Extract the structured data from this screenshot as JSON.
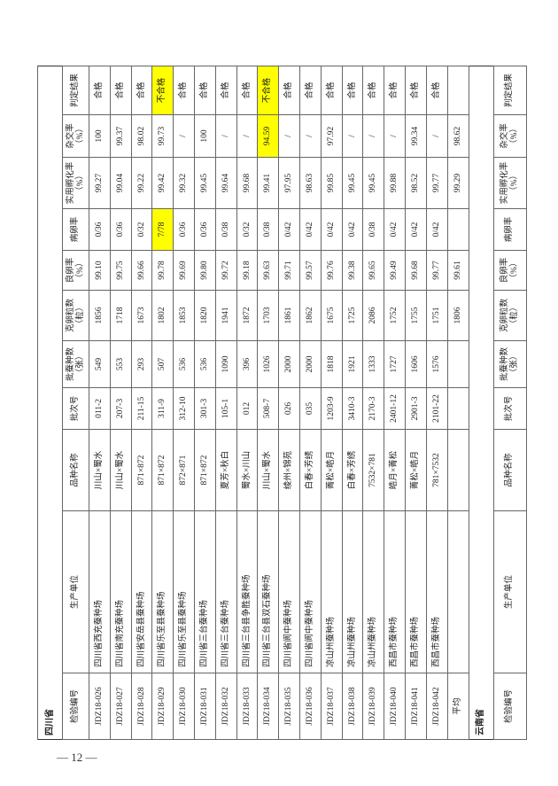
{
  "province1": "四川省",
  "province2": "云南省",
  "headers": [
    "检验编号",
    "生产单位",
    "品种名称",
    "批次号",
    "批蚕种数\n（张）",
    "克卵粒数\n（粒）",
    "良卵率\n（%）",
    "病卵率",
    "实用孵化率\n（%）",
    "杂交率\n（%）",
    "判定结果"
  ],
  "rows": [
    [
      "JDZ18-026",
      "四川省西充蚕种场",
      "川山×蜀水",
      "011-2",
      "549",
      "1856",
      "99.10",
      "0/36",
      "99.27",
      "100",
      "合格"
    ],
    [
      "JDZ18-027",
      "四川省南充蚕种场",
      "川山×蜀水",
      "207-3",
      "553",
      "1718",
      "99.75",
      "0/36",
      "99.04",
      "99.37",
      "合格"
    ],
    [
      "JDZ18-028",
      "四川省安岳县蚕种场",
      "871×872",
      "211-15",
      "293",
      "1673",
      "99.66",
      "0/32",
      "99.22",
      "98.02",
      "合格"
    ],
    [
      "JDZ18-029",
      "四川省乐至县蚕种场",
      "871×872",
      "311-9",
      "507",
      "1802",
      "99.78",
      "7/78",
      "99.42",
      "99.73",
      "不合格"
    ],
    [
      "JDZ18-030",
      "四川省乐至县蚕种场",
      "872×871",
      "312-10",
      "536",
      "1853",
      "99.69",
      "0/36",
      "99.32",
      "/",
      "合格"
    ],
    [
      "JDZ18-031",
      "四川省三台蚕种场",
      "871×872",
      "301-3",
      "536",
      "1820",
      "99.80",
      "0/36",
      "99.45",
      "100",
      "合格"
    ],
    [
      "JDZ18-032",
      "四川省三台蚕种场",
      "夏芳×秋白",
      "105-1",
      "1090",
      "1941",
      "99.72",
      "0/38",
      "99.64",
      "/",
      "合格"
    ],
    [
      "JDZ18-033",
      "四川省三台县争胜蚕种场",
      "蜀水×川山",
      "012",
      "396",
      "1872",
      "99.18",
      "0/32",
      "99.68",
      "/",
      "合格"
    ],
    [
      "JDZ18-034",
      "四川省三台县双石蚕种场",
      "川山×蜀水",
      "508-7",
      "1026",
      "1703",
      "99.63",
      "0/38",
      "99.41",
      "94.59",
      "不合格"
    ],
    [
      "JDZ18-035",
      "四川省阆中蚕种场",
      "绫州×锦苑",
      "026",
      "2000",
      "1861",
      "99.71",
      "0/42",
      "97.95",
      "/",
      "合格"
    ],
    [
      "JDZ18-036",
      "四川省阆中蚕种场",
      "白春×芳绣",
      "035",
      "2000",
      "1862",
      "99.57",
      "0/42",
      "98.63",
      "/",
      "合格"
    ],
    [
      "JDZ18-037",
      "凉山州蚕种场",
      "菁松×皓月",
      "1203-9",
      "1818",
      "1675",
      "99.76",
      "0/42",
      "99.85",
      "97.92",
      "合格"
    ],
    [
      "JDZ18-038",
      "凉山州蚕种场",
      "白春×芳绣",
      "3410-3",
      "1921",
      "1725",
      "99.38",
      "0/42",
      "99.45",
      "/",
      "合格"
    ],
    [
      "JDZ18-039",
      "凉山州蚕种场",
      "7532×781",
      "2170-3",
      "1333",
      "2086",
      "99.65",
      "0/38",
      "99.45",
      "/",
      "合格"
    ],
    [
      "JDZ18-040",
      "西昌市蚕种场",
      "皓月×菁松",
      "2401-12",
      "1727",
      "1752",
      "99.49",
      "0/42",
      "99.88",
      "/",
      "合格"
    ],
    [
      "JDZ18-041",
      "西昌市蚕种场",
      "菁松×皓月",
      "2901-3",
      "1606",
      "1755",
      "99.68",
      "0/42",
      "98.52",
      "99.34",
      "合格"
    ],
    [
      "JDZ18-042",
      "西昌市蚕种场",
      "781×7532",
      "2101-22",
      "1576",
      "1751",
      "99.77",
      "0/42",
      "99.77",
      "/",
      "合格"
    ]
  ],
  "highlights": [
    [
      3,
      7
    ],
    [
      3,
      10
    ],
    [
      8,
      9
    ],
    [
      8,
      10
    ]
  ],
  "highlight_color": "#ffff00",
  "average": {
    "label": "平均",
    "values": [
      "",
      "",
      "",
      "",
      "1806",
      "99.61",
      "",
      "99.29",
      "98.62",
      ""
    ]
  },
  "page_number": "— 12 —"
}
